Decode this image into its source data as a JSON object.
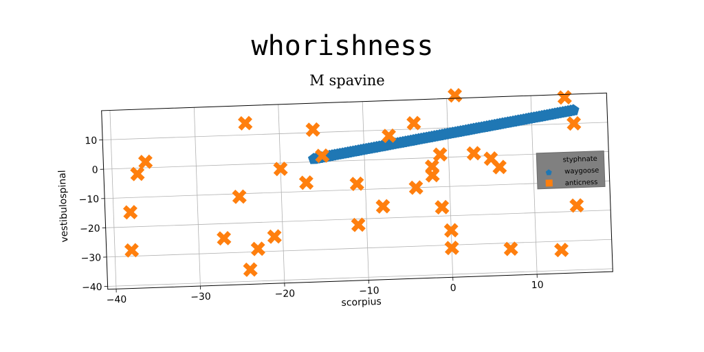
{
  "figure_title": "whorishness",
  "chart_data": {
    "type": "scatter",
    "title": "M spavine",
    "xlabel": "scorpius",
    "ylabel": "vestibulospinal",
    "xlim": [
      -41,
      19
    ],
    "ylim": [
      -41,
      20
    ],
    "xticks": [
      -40,
      -30,
      -20,
      -10,
      0,
      10
    ],
    "yticks": [
      -40,
      -30,
      -20,
      -10,
      0,
      10
    ],
    "grid": true,
    "legend": {
      "title": "styphnate",
      "placement": "right"
    },
    "series": [
      {
        "name": "waygoose",
        "marker": "pentagon",
        "color": "#1f77b4",
        "line_start": [
          -16,
          1
        ],
        "line_end": [
          15,
          14.5
        ],
        "n_points": 100
      },
      {
        "name": "anticness",
        "marker": "x",
        "color": "#ff7f0e",
        "points": [
          [
            -38,
            -15
          ],
          [
            -38,
            -28
          ],
          [
            -37,
            -2
          ],
          [
            -36,
            2
          ],
          [
            -27,
            -25
          ],
          [
            -25,
            -11
          ],
          [
            -24,
            14
          ],
          [
            -23,
            -29
          ],
          [
            -24,
            -36
          ],
          [
            -21,
            -25
          ],
          [
            -20,
            -2
          ],
          [
            -17,
            -7
          ],
          [
            -16,
            11
          ],
          [
            -15,
            2
          ],
          [
            -11,
            -8
          ],
          [
            -11,
            -22
          ],
          [
            -8,
            -16
          ],
          [
            -7,
            8
          ],
          [
            -4,
            -10
          ],
          [
            -4,
            12
          ],
          [
            -2,
            -3
          ],
          [
            -2,
            -6
          ],
          [
            -1,
            1
          ],
          [
            -1,
            -17
          ],
          [
            0,
            -25
          ],
          [
            0,
            -31
          ],
          [
            1,
            21
          ],
          [
            3,
            1
          ],
          [
            5,
            -1
          ],
          [
            6,
            -4
          ],
          [
            7,
            -32
          ],
          [
            13,
            -33
          ],
          [
            14,
            19
          ],
          [
            15,
            10
          ],
          [
            15,
            -18
          ]
        ]
      }
    ]
  }
}
